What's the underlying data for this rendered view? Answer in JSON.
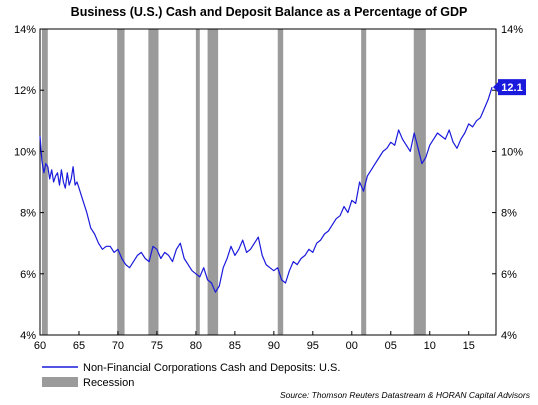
{
  "chart_data": {
    "type": "line",
    "title": "Business (U.S.) Cash and Deposit Balance as a Percentage of GDP",
    "xlim": [
      1960,
      2018.5
    ],
    "ylim": [
      4,
      14
    ],
    "x_ticks": [
      1960,
      1965,
      1970,
      1975,
      1980,
      1985,
      1990,
      1995,
      2000,
      2005,
      2010,
      2015
    ],
    "x_tick_labels": [
      "60",
      "65",
      "70",
      "75",
      "80",
      "85",
      "90",
      "95",
      "00",
      "05",
      "10",
      "15"
    ],
    "y_ticks": [
      4,
      6,
      8,
      10,
      12,
      14
    ],
    "y_tick_labels_left": [
      "4%",
      "6%",
      "8%",
      "10%",
      "12%",
      "14%"
    ],
    "y_tick_labels_right": [
      "4%",
      "6%",
      "8%",
      "10%",
      "12%",
      "14%"
    ],
    "last_value_label": "12.1",
    "grid": false,
    "legend_position": "bottom-left",
    "series": [
      {
        "name": "Non-Financial Corporations Cash and Deposits: U.S.",
        "color": "#1a1adc",
        "x": [
          1960.0,
          1960.25,
          1960.5,
          1960.75,
          1961.0,
          1961.25,
          1961.5,
          1961.75,
          1962.0,
          1962.25,
          1962.5,
          1962.75,
          1963.0,
          1963.25,
          1963.5,
          1963.75,
          1964.0,
          1964.25,
          1964.5,
          1964.75,
          1965.0,
          1965.5,
          1966.0,
          1966.5,
          1967.0,
          1967.5,
          1968.0,
          1968.5,
          1969.0,
          1969.5,
          1970.0,
          1970.5,
          1971.0,
          1971.5,
          1972.0,
          1972.5,
          1973.0,
          1973.5,
          1974.0,
          1974.5,
          1975.0,
          1975.5,
          1976.0,
          1976.5,
          1977.0,
          1977.5,
          1978.0,
          1978.5,
          1979.0,
          1979.5,
          1980.0,
          1980.5,
          1981.0,
          1981.5,
          1982.0,
          1982.5,
          1983.0,
          1983.5,
          1984.0,
          1984.5,
          1985.0,
          1985.5,
          1986.0,
          1986.5,
          1987.0,
          1987.5,
          1988.0,
          1988.5,
          1989.0,
          1989.5,
          1990.0,
          1990.5,
          1991.0,
          1991.5,
          1992.0,
          1992.5,
          1993.0,
          1993.5,
          1994.0,
          1994.5,
          1995.0,
          1995.5,
          1996.0,
          1996.5,
          1997.0,
          1997.5,
          1998.0,
          1998.5,
          1999.0,
          1999.5,
          2000.0,
          2000.5,
          2001.0,
          2001.5,
          2002.0,
          2002.5,
          2003.0,
          2003.5,
          2004.0,
          2004.5,
          2005.0,
          2005.5,
          2006.0,
          2006.5,
          2007.0,
          2007.5,
          2008.0,
          2008.5,
          2009.0,
          2009.5,
          2010.0,
          2010.5,
          2011.0,
          2011.5,
          2012.0,
          2012.5,
          2013.0,
          2013.5,
          2014.0,
          2014.5,
          2015.0,
          2015.5,
          2016.0,
          2016.5,
          2017.0,
          2017.5,
          2018.0
        ],
        "y": [
          10.5,
          9.7,
          9.3,
          9.6,
          9.5,
          9.1,
          9.4,
          9.0,
          9.2,
          9.3,
          8.9,
          9.4,
          9.0,
          8.8,
          9.3,
          8.9,
          9.1,
          9.5,
          8.9,
          9.0,
          8.8,
          8.4,
          8.0,
          7.5,
          7.3,
          7.0,
          6.8,
          6.9,
          6.9,
          6.7,
          6.8,
          6.5,
          6.3,
          6.2,
          6.4,
          6.6,
          6.7,
          6.5,
          6.4,
          6.9,
          6.8,
          6.5,
          6.7,
          6.6,
          6.4,
          6.8,
          7.0,
          6.5,
          6.3,
          6.1,
          6.0,
          5.9,
          6.2,
          5.8,
          5.7,
          5.4,
          5.6,
          6.2,
          6.5,
          6.9,
          6.6,
          6.8,
          7.1,
          6.7,
          6.8,
          7.0,
          7.2,
          6.6,
          6.3,
          6.2,
          6.1,
          6.2,
          5.8,
          5.7,
          6.1,
          6.4,
          6.3,
          6.5,
          6.6,
          6.8,
          6.7,
          7.0,
          7.1,
          7.3,
          7.4,
          7.6,
          7.8,
          7.9,
          8.2,
          8.0,
          8.4,
          8.3,
          9.0,
          8.7,
          9.2,
          9.4,
          9.6,
          9.8,
          10.0,
          10.1,
          10.3,
          10.2,
          10.7,
          10.4,
          10.2,
          10.0,
          10.6,
          10.1,
          9.6,
          9.8,
          10.2,
          10.4,
          10.6,
          10.5,
          10.4,
          10.7,
          10.3,
          10.1,
          10.4,
          10.6,
          10.9,
          10.8,
          11.0,
          11.1,
          11.4,
          11.7,
          12.1
        ]
      }
    ],
    "recessions": [
      {
        "start": 1960.25,
        "end": 1961.0
      },
      {
        "start": 1969.9,
        "end": 1970.85
      },
      {
        "start": 1973.9,
        "end": 1975.2
      },
      {
        "start": 1980.0,
        "end": 1980.5
      },
      {
        "start": 1981.5,
        "end": 1982.85
      },
      {
        "start": 1990.5,
        "end": 1991.2
      },
      {
        "start": 2001.2,
        "end": 2001.85
      },
      {
        "start": 2007.95,
        "end": 2009.5
      }
    ],
    "recession_color": "#9b9b9b",
    "legend": [
      {
        "label": "Non-Financial Corporations Cash and Deposits: U.S.",
        "kind": "line",
        "color": "#1a1adc"
      },
      {
        "label": "Recession",
        "kind": "box",
        "color": "#9b9b9b"
      }
    ],
    "source": "Source: Thomson Reuters Datastream & HORAN Capital Advisors"
  }
}
